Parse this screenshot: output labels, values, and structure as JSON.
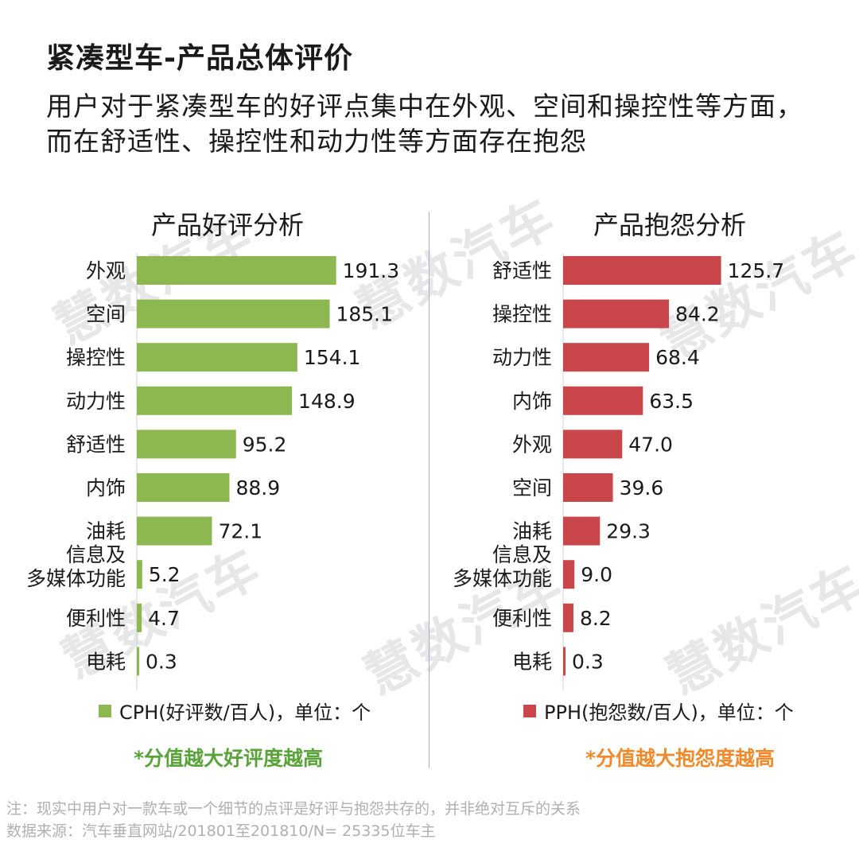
{
  "title": "紧凑型车-产品总体评价",
  "subtitle": "用户对于紧凑型车的好评点集中在外观、空间和操控性等方面，而在舒适性、操控性和动力性等方面存在抱怨",
  "watermark": "慧数汽车",
  "colors": {
    "positive": "#8db851",
    "negative": "#c9474a",
    "positive_note": "#5aa23a",
    "negative_note": "#f08a2c"
  },
  "chart_data": [
    {
      "type": "bar",
      "orientation": "horizontal",
      "title": "产品好评分析",
      "categories": [
        "外观",
        "空间",
        "操控性",
        "动力性",
        "舒适性",
        "内饰",
        "油耗",
        "信息及\n多媒体功能",
        "便利性",
        "电耗"
      ],
      "values": [
        191.3,
        185.1,
        154.1,
        148.9,
        95.2,
        88.9,
        72.1,
        5.2,
        4.7,
        0.3
      ],
      "value_labels": [
        "191.3",
        "185.1",
        "154.1",
        "148.9",
        "95.2",
        "88.9",
        "72.1",
        "5.2",
        "4.7",
        "0.3"
      ],
      "series_name": "CPH(好评数/百人)，单位：个",
      "note": "*分值越大好评度越高",
      "xlim": [
        0,
        200
      ]
    },
    {
      "type": "bar",
      "orientation": "horizontal",
      "title": "产品抱怨分析",
      "categories": [
        "舒适性",
        "操控性",
        "动力性",
        "内饰",
        "外观",
        "空间",
        "油耗",
        "信息及\n多媒体功能",
        "便利性",
        "电耗"
      ],
      "values": [
        125.7,
        84.2,
        68.4,
        63.5,
        47.0,
        39.6,
        29.3,
        9.0,
        8.2,
        0.3
      ],
      "value_labels": [
        "125.7",
        "84.2",
        "68.4",
        "63.5",
        "47.0",
        "39.6",
        "29.3",
        "9.0",
        "8.2",
        "0.3"
      ],
      "series_name": "PPH(抱怨数/百人)，单位：个",
      "note": "*分值越大抱怨度越高",
      "xlim": [
        0,
        131
      ]
    }
  ],
  "footnote": {
    "line1": "注：现实中用户对一款车或一个细节的点评是好评与抱怨共存的，并非绝对互斥的关系",
    "line2": "数据来源：汽车垂直网站/201801至201810/N= 25335位车主"
  }
}
